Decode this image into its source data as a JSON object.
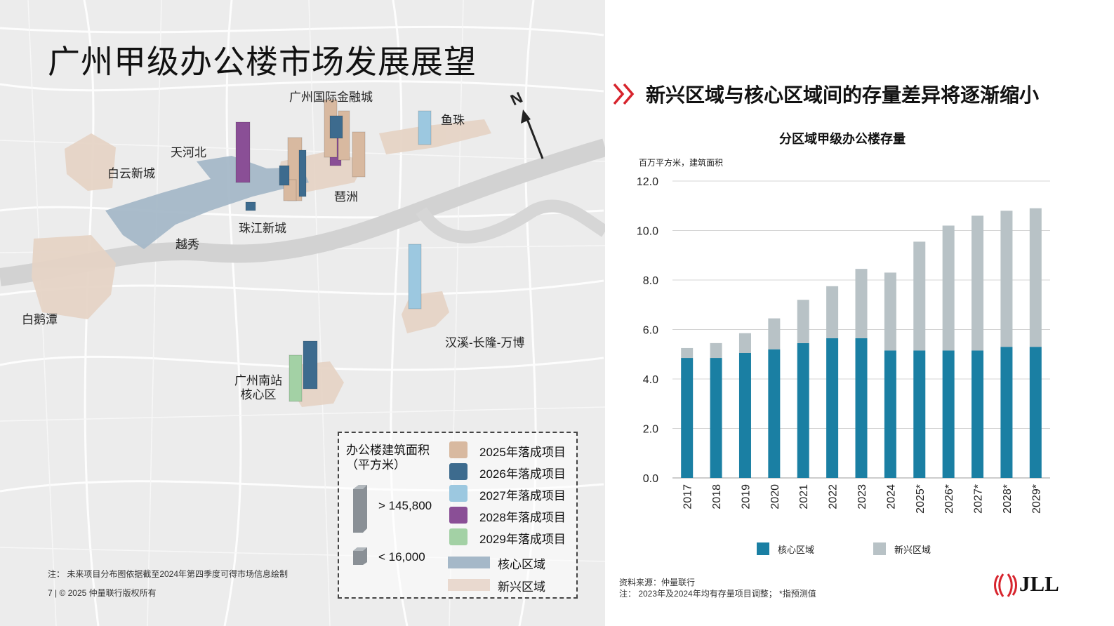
{
  "map": {
    "title": "广州甲级办公楼市场发展展望",
    "north": "N",
    "labels": {
      "zhujiang_new_town": "珠江新城",
      "yuexiu": "越秀",
      "tianhe_north": "天河北",
      "baiyun_new_city": "白云新城",
      "pazhou": "琶洲",
      "ifc": "广州国际金融城",
      "yuzhu": "鱼珠",
      "baietan": "白鹅潭",
      "hanxi": "汉溪-长隆-万博",
      "south_station": "广州南站\n核心区"
    },
    "legend": {
      "size_title": "办公楼建筑面积\n（平方米）",
      "large": "> 145,800",
      "small": "< 16,000",
      "items": [
        {
          "label": "2025年落成项目",
          "color": "#d8b9a0"
        },
        {
          "label": "2026年落成项目",
          "color": "#3d6b8e"
        },
        {
          "label": "2027年落成项目",
          "color": "#9cc8e0"
        },
        {
          "label": "2028年落成项目",
          "color": "#8a4f96"
        },
        {
          "label": "2029年落成项目",
          "color": "#a3d1a5"
        }
      ],
      "zones": [
        {
          "label": "核心区域",
          "color": "#a5b8c8"
        },
        {
          "label": "新兴区域",
          "color": "#e9d9cf"
        }
      ]
    },
    "note": "注：  未来项目分布图依据截至2024年第四季度可得市场信息绘制",
    "footer": "7  |  © 2025  仲量联行版权所有"
  },
  "right": {
    "title": "新兴区域与核心区域间的存量差异将逐渐缩小",
    "source": "资料来源：仲量联行",
    "note": "注：   2023年及2024年均有存量项目调整；  *指预测值",
    "logo": "JLL"
  },
  "chart_data": {
    "type": "bar",
    "stacked": true,
    "title": "分区域甲级办公楼存量",
    "ylabel": "百万平方米，建筑面积",
    "ylim": [
      0,
      12
    ],
    "yticks": [
      "0.0",
      "2.0",
      "4.0",
      "6.0",
      "8.0",
      "10.0",
      "12.0"
    ],
    "categories": [
      "2017",
      "2018",
      "2019",
      "2020",
      "2021",
      "2022",
      "2023",
      "2024",
      "2025*",
      "2026*",
      "2027*",
      "2028*",
      "2029*"
    ],
    "series": [
      {
        "name": "核心区域",
        "color": "#1a7fa3",
        "values": [
          4.85,
          4.85,
          5.05,
          5.2,
          5.45,
          5.65,
          5.65,
          5.15,
          5.15,
          5.15,
          5.15,
          5.3,
          5.3
        ]
      },
      {
        "name": "新兴区域",
        "color": "#b8c2c6",
        "values": [
          0.4,
          0.6,
          0.8,
          1.25,
          1.75,
          2.1,
          2.8,
          3.15,
          4.4,
          5.05,
          5.45,
          5.5,
          5.6
        ]
      }
    ],
    "legend_position": "bottom",
    "grid": true
  }
}
